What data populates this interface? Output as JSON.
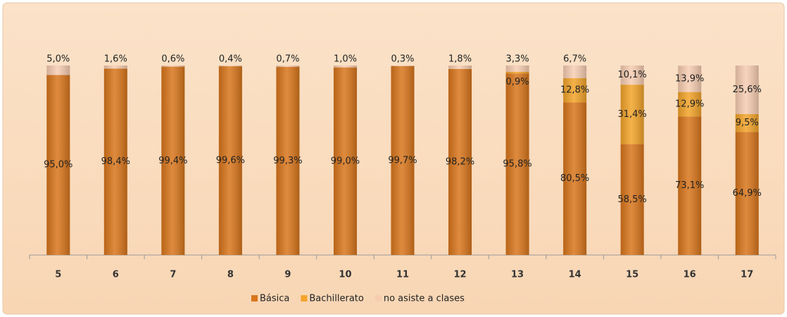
{
  "chart_data": {
    "type": "stacked_bar",
    "categories": [
      "5",
      "6",
      "7",
      "8",
      "9",
      "10",
      "11",
      "12",
      "13",
      "14",
      "15",
      "16",
      "17"
    ],
    "series": [
      {
        "name": "Básica",
        "color": "#d9761c",
        "values": [
          95.0,
          98.4,
          99.4,
          99.6,
          99.3,
          99.0,
          99.7,
          98.2,
          95.8,
          80.5,
          58.5,
          73.1,
          64.9
        ],
        "value_labels": [
          "95,0%",
          "98,4%",
          "99,4%",
          "99,6%",
          "99,3%",
          "99,0%",
          "99,7%",
          "98,2%",
          "95,8%",
          "80,5%",
          "58,5%",
          "73,1%",
          "64,9%"
        ]
      },
      {
        "name": "Bachillerato",
        "color": "#f3a42a",
        "values": [
          null,
          null,
          null,
          null,
          null,
          null,
          null,
          null,
          0.9,
          12.8,
          31.4,
          12.9,
          9.5
        ],
        "value_labels": [
          null,
          null,
          null,
          null,
          null,
          null,
          null,
          null,
          "0,9%",
          "12,8%",
          "31,4%",
          "12,9%",
          "9,5%"
        ]
      },
      {
        "name": "no asiste a clases",
        "color": "#f7cdb2",
        "values": [
          5.0,
          1.6,
          0.6,
          0.4,
          0.7,
          1.0,
          0.3,
          1.8,
          3.3,
          6.7,
          10.1,
          13.9,
          25.6
        ],
        "value_labels": [
          "5,0%",
          "1,6%",
          "0,6%",
          "0,4%",
          "0,7%",
          "1,0%",
          "0,3%",
          "1,8%",
          "3,3%",
          "6,7%",
          "10,1%",
          "13,9%",
          "25,6%"
        ]
      }
    ],
    "ylim": [
      0,
      100
    ]
  }
}
